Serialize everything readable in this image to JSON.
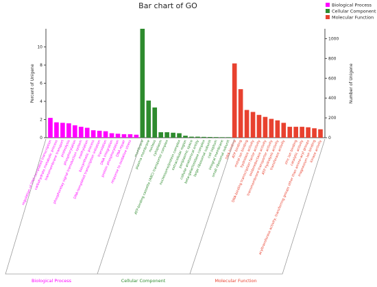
{
  "chart_data": {
    "type": "bar",
    "title": "Bar chart of GO",
    "ylabel_left": "Percent of Unigene",
    "ylabel_right": "Number of Unigene",
    "ylim_left": [
      0,
      12
    ],
    "ylim_right": [
      0,
      1100
    ],
    "yticks_left": [
      0,
      2,
      4,
      6,
      8,
      10
    ],
    "yticks_right": [
      0,
      200,
      400,
      600,
      800,
      1000
    ],
    "legend_position": "top-right",
    "legend": [
      {
        "name": "Biological Process",
        "color": "#ff00ff"
      },
      {
        "name": "Cellular Component",
        "color": "#2e8b2e"
      },
      {
        "name": "Molecular Function",
        "color": "#e8412f"
      }
    ],
    "groups": [
      {
        "name": "Biological Process",
        "color": "#ff00ff",
        "start": 0,
        "count": 15
      },
      {
        "name": "Cellular Component",
        "color": "#2e8b2e",
        "start": 15,
        "count": 15
      },
      {
        "name": "Molecular Function",
        "color": "#e8412f",
        "start": 30,
        "count": 15
      }
    ],
    "categories": [
      "regulation of DNA-templated transcription",
      "carbohydrate metabolic process",
      "transmembrane transport",
      "proteolysis",
      "phosphorylation",
      "phosphorelay signal transduction system",
      "methylation",
      "biosynthetic process",
      "DNA-templated transcription initiation",
      "translation",
      "DNA integration",
      "protein phosphorylation",
      "DNA repair",
      "response to oxidative stress",
      "",
      "membrane",
      "plasma membrane",
      "nucleus",
      "cytoplasm",
      "ATP-binding cassette (ABC) transporter complex",
      "",
      "nucleosome/protein complex",
      "extracellular region",
      "periplasmic space",
      "cellular anatomical entity",
      "beta-galactosidase complex",
      "large ribosomal subunit",
      "cell septum",
      "integral membrane",
      "small ribosomal subunit",
      "DNA binding",
      "ATP binding",
      "metal ion binding",
      "hydrolase activity",
      "DNA-binding transcription factor activity",
      "oxidoreductase activity",
      "transmembrane transporter activity",
      "ATP hydrolysis activity",
      "transferase activity",
      "",
      "zinc ion binding",
      "catalytic activity",
      "acyltransferase activity, transferring groups other than amino-acyl groups",
      "magnesium ion binding",
      "kinase activity"
    ],
    "counts": [
      200,
      155,
      150,
      145,
      125,
      110,
      100,
      75,
      70,
      65,
      45,
      40,
      35,
      35,
      30,
      1100,
      375,
      305,
      55,
      55,
      50,
      45,
      20,
      10,
      10,
      8,
      7,
      6,
      5,
      5,
      750,
      490,
      280,
      260,
      230,
      210,
      190,
      175,
      150,
      110,
      110,
      110,
      105,
      95,
      85
    ]
  }
}
